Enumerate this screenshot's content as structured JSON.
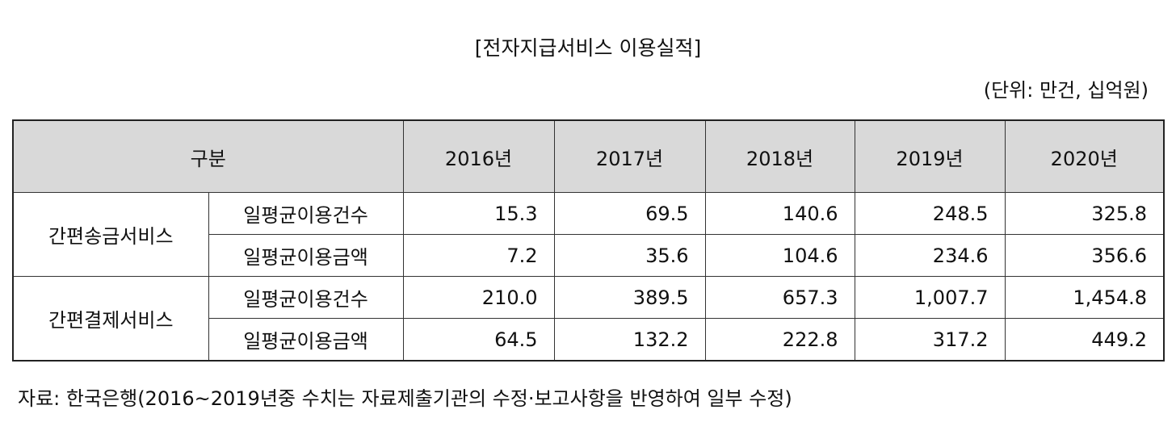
{
  "title": "[전자지급서비스 이용실적]",
  "unit": "(단위: 만건, 십억원)",
  "table": {
    "header": [
      "구분",
      "2016년",
      "2017년",
      "2018년",
      "2019년",
      "2020년"
    ],
    "groups": [
      {
        "label": "간편송금서비스",
        "rows": [
          {
            "label": "일평균이용건수",
            "values": [
              "15.3",
              "69.5",
              "140.6",
              "248.5",
              "325.8"
            ]
          },
          {
            "label": "일평균이용금액",
            "values": [
              "7.2",
              "35.6",
              "104.6",
              "234.6",
              "356.6"
            ]
          }
        ]
      },
      {
        "label": "간편결제서비스",
        "rows": [
          {
            "label": "일평균이용건수",
            "values": [
              "210.0",
              "389.5",
              "657.3",
              "1,007.7",
              "1,454.8"
            ]
          },
          {
            "label": "일평균이용금액",
            "values": [
              "64.5",
              "132.2",
              "222.8",
              "317.2",
              "449.2"
            ]
          }
        ]
      }
    ]
  },
  "source": "자료: 한국은행(2016~2019년중 수치는 자료제출기관의 수정·보고사항을 반영하여 일부 수정)"
}
